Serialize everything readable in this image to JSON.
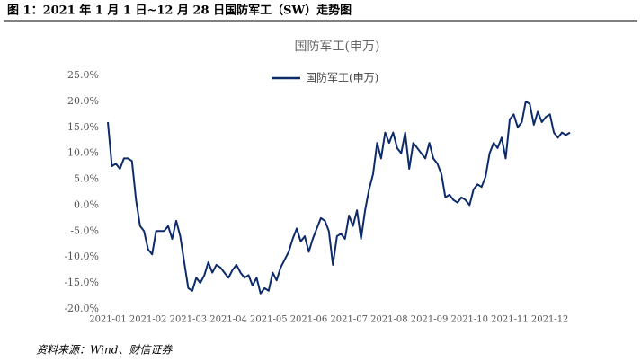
{
  "caption": "图 1：2021 年 1 月 1 日~12 月 28 日国防军工（SW）走势图",
  "source": "资料来源：Wind、财信证券",
  "chart_data": {
    "type": "line",
    "title": "国防军工(申万)",
    "categories": [
      "2021-01",
      null,
      null,
      null,
      null,
      null,
      null,
      null,
      null,
      null,
      "2021-02",
      null,
      null,
      null,
      null,
      null,
      null,
      null,
      null,
      null,
      "2021-03",
      null,
      null,
      null,
      null,
      null,
      null,
      null,
      null,
      null,
      "2021-04",
      null,
      null,
      null,
      null,
      null,
      null,
      null,
      null,
      null,
      "2021-05",
      null,
      null,
      null,
      null,
      null,
      null,
      null,
      null,
      null,
      "2021-06",
      null,
      null,
      null,
      null,
      null,
      null,
      null,
      null,
      null,
      "2021-07",
      null,
      null,
      null,
      null,
      null,
      null,
      null,
      null,
      null,
      "2021-08",
      null,
      null,
      null,
      null,
      null,
      null,
      null,
      null,
      null,
      "2021-09",
      null,
      null,
      null,
      null,
      null,
      null,
      null,
      null,
      null,
      "2021-10",
      null,
      null,
      null,
      null,
      null,
      null,
      null,
      null,
      null,
      "2021-11",
      null,
      null,
      null,
      null,
      null,
      null,
      null,
      null,
      null,
      "2021-12",
      null,
      null,
      null,
      null,
      null
    ],
    "series": [
      {
        "name": "国防军工(申万)",
        "color": "#0d2b6b",
        "values": [
          16,
          7.5,
          8,
          7,
          9,
          9,
          8.5,
          1,
          -4,
          -5,
          -8.5,
          -9.5,
          -5,
          -5,
          -5,
          -4,
          -6.5,
          -3,
          -6,
          -11,
          -16,
          -16.5,
          -14,
          -15,
          -13.5,
          -11,
          -13,
          -11.5,
          -12,
          -13,
          -14,
          -12.5,
          -11.5,
          -13,
          -14,
          -13.5,
          -15.5,
          -14,
          -17,
          -16,
          -16.5,
          -13,
          -14.5,
          -12,
          -10.5,
          -9,
          -6.5,
          -4.5,
          -7,
          -6,
          -9,
          -6.5,
          -4.5,
          -2.5,
          -3,
          -5,
          -11.5,
          -6,
          -5.5,
          -6.5,
          -2,
          -4,
          -1,
          -6.5,
          -1,
          3,
          6,
          12,
          9,
          14,
          12,
          14,
          11,
          10,
          14,
          7,
          12,
          11,
          10,
          9,
          12,
          9,
          8,
          6,
          1.5,
          2,
          1,
          0.5,
          1.5,
          1,
          0,
          3,
          4,
          3.5,
          5.5,
          10,
          12,
          11,
          13,
          9,
          16.5,
          17.5,
          15,
          16,
          20,
          19.5,
          15.5,
          18,
          16,
          17,
          17.5,
          14,
          13,
          14,
          13.5,
          14
        ]
      }
    ],
    "ylim": [
      -20,
      25
    ],
    "yticks": [
      {
        "value": -20,
        "label": "-20.0%"
      },
      {
        "value": -15,
        "label": "-15.0%"
      },
      {
        "value": -10,
        "label": "-10.0%"
      },
      {
        "value": -5,
        "label": "-5.0%"
      },
      {
        "value": 0,
        "label": "0.0%"
      },
      {
        "value": 5,
        "label": "5.0%"
      },
      {
        "value": 10,
        "label": "10.0%"
      },
      {
        "value": 15,
        "label": "15.0%"
      },
      {
        "value": 20,
        "label": "20.0%"
      },
      {
        "value": 25,
        "label": "25.0%"
      }
    ],
    "grid": false
  }
}
